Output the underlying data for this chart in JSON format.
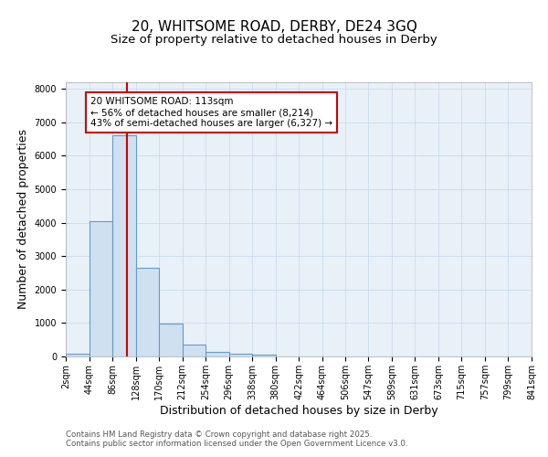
{
  "title": "20, WHITSOME ROAD, DERBY, DE24 3GQ",
  "subtitle": "Size of property relative to detached houses in Derby",
  "xlabel": "Distribution of detached houses by size in Derby",
  "ylabel": "Number of detached properties",
  "bin_edges": [
    2,
    44,
    86,
    128,
    170,
    212,
    254,
    296,
    338,
    380,
    422,
    464,
    506,
    547,
    589,
    631,
    673,
    715,
    757,
    799,
    841
  ],
  "bar_heights": [
    80,
    4050,
    6620,
    2650,
    980,
    350,
    130,
    80,
    50,
    0,
    0,
    0,
    0,
    0,
    0,
    0,
    0,
    0,
    0,
    0
  ],
  "bar_color": "#cfe0f0",
  "bar_edge_color": "#6699cc",
  "bar_edge_width": 0.8,
  "property_line_x": 113,
  "property_line_color": "#cc0000",
  "annotation_title": "20 WHITSOME ROAD: 113sqm",
  "annotation_line1": "← 56% of detached houses are smaller (8,214)",
  "annotation_line2": "43% of semi-detached houses are larger (6,327) →",
  "annotation_box_edgecolor": "#cc0000",
  "ylim": [
    0,
    8200
  ],
  "yticks": [
    0,
    1000,
    2000,
    3000,
    4000,
    5000,
    6000,
    7000,
    8000
  ],
  "tick_labels": [
    "2sqm",
    "44sqm",
    "86sqm",
    "128sqm",
    "170sqm",
    "212sqm",
    "254sqm",
    "296sqm",
    "338sqm",
    "380sqm",
    "422sqm",
    "464sqm",
    "506sqm",
    "547sqm",
    "589sqm",
    "631sqm",
    "673sqm",
    "715sqm",
    "757sqm",
    "799sqm",
    "841sqm"
  ],
  "footer_line1": "Contains HM Land Registry data © Crown copyright and database right 2025.",
  "footer_line2": "Contains public sector information licensed under the Open Government Licence v3.0.",
  "grid_color": "#c5d8ea",
  "background_color": "#e8f0f8",
  "title_fontsize": 11,
  "subtitle_fontsize": 9.5,
  "axis_label_fontsize": 9,
  "tick_fontsize": 7,
  "annotation_fontsize": 7.5,
  "footer_fontsize": 6.2
}
